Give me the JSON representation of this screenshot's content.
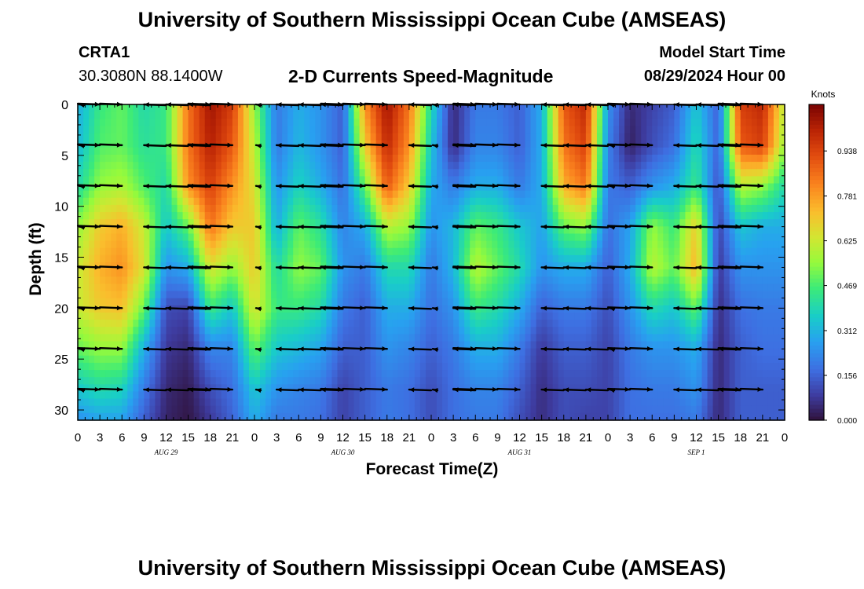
{
  "header": {
    "title": "University of Southern Mississippi Ocean Cube (AMSEAS)",
    "station": "CRTA1",
    "coords": "30.3080N  88.1400W",
    "product": "2-D Currents Speed-Magnitude",
    "model_start_label": "Model Start Time",
    "model_start_value": "08/29/2024 Hour 00"
  },
  "footer": {
    "title": "University of Southern Mississippi Ocean Cube (AMSEAS)"
  },
  "chart_data": {
    "type": "heatmap",
    "title": "2-D Currents Speed-Magnitude",
    "xlabel": "Forecast Time(Z)",
    "ylabel": "Depth (ft)",
    "xlim": [
      0,
      96
    ],
    "ylim": [
      0,
      31
    ],
    "y_inverted": true,
    "x_tick_labels": [
      "0",
      "3",
      "6",
      "9",
      "12",
      "15",
      "18",
      "21",
      "0",
      "3",
      "6",
      "9",
      "12",
      "15",
      "18",
      "21",
      "0",
      "3",
      "6",
      "9",
      "12",
      "15",
      "18",
      "21",
      "0",
      "3",
      "6",
      "9",
      "12",
      "15",
      "18",
      "21",
      "0"
    ],
    "date_labels": [
      {
        "hour": 12,
        "label": "AUG 29"
      },
      {
        "hour": 36,
        "label": "AUG 30"
      },
      {
        "hour": 60,
        "label": "AUG 31"
      },
      {
        "hour": 84,
        "label": "SEP 1"
      }
    ],
    "y_ticks": [
      0,
      5,
      10,
      15,
      20,
      25,
      30
    ],
    "y_tick_labels": [
      "0",
      "5",
      "10",
      "15",
      "20",
      "25",
      "30"
    ],
    "colorbar": {
      "unit": "Knots",
      "min": 0,
      "max": 1.1,
      "tick_values": [
        0.0,
        0.156,
        0.312,
        0.469,
        0.625,
        0.781,
        0.938
      ],
      "tick_labels": [
        "0.000",
        "0.156",
        "0.312",
        "0.469",
        "0.625",
        "0.781",
        "0.938"
      ]
    },
    "speed_profiles": [
      {
        "hour": 0,
        "speeds": [
          0.3,
          0.32,
          0.4,
          0.55,
          0.62,
          0.62,
          0.5,
          0.35,
          0.25
        ]
      },
      {
        "hour": 3,
        "speeds": [
          0.45,
          0.48,
          0.55,
          0.7,
          0.75,
          0.7,
          0.55,
          0.4,
          0.28
        ]
      },
      {
        "hour": 6,
        "speeds": [
          0.5,
          0.5,
          0.58,
          0.75,
          0.8,
          0.72,
          0.55,
          0.38,
          0.28
        ]
      },
      {
        "hour": 9,
        "speeds": [
          0.4,
          0.42,
          0.48,
          0.62,
          0.65,
          0.5,
          0.3,
          0.2,
          0.15
        ]
      },
      {
        "hour": 12,
        "speeds": [
          0.45,
          0.45,
          0.4,
          0.35,
          0.25,
          0.12,
          0.08,
          0.05,
          0.04
        ]
      },
      {
        "hour": 15,
        "speeds": [
          0.85,
          0.85,
          0.8,
          0.5,
          0.3,
          0.1,
          0.05,
          0.02,
          0.01
        ]
      },
      {
        "hour": 18,
        "speeds": [
          1.05,
          1.02,
          0.95,
          0.85,
          0.65,
          0.45,
          0.22,
          0.12,
          0.08
        ]
      },
      {
        "hour": 21,
        "speeds": [
          0.95,
          0.9,
          0.8,
          0.7,
          0.55,
          0.35,
          0.22,
          0.18,
          0.16
        ]
      },
      {
        "hour": 24,
        "speeds": [
          0.55,
          0.6,
          0.65,
          0.7,
          0.7,
          0.65,
          0.5,
          0.35,
          0.3
        ]
      },
      {
        "hour": 27,
        "speeds": [
          0.2,
          0.2,
          0.25,
          0.3,
          0.4,
          0.45,
          0.35,
          0.25,
          0.2
        ]
      },
      {
        "hour": 30,
        "speeds": [
          0.3,
          0.32,
          0.38,
          0.5,
          0.55,
          0.45,
          0.32,
          0.22,
          0.2
        ]
      },
      {
        "hour": 33,
        "speeds": [
          0.25,
          0.25,
          0.3,
          0.42,
          0.5,
          0.4,
          0.28,
          0.2,
          0.18
        ]
      },
      {
        "hour": 36,
        "speeds": [
          0.15,
          0.15,
          0.18,
          0.22,
          0.25,
          0.2,
          0.15,
          0.1,
          0.1
        ]
      },
      {
        "hour": 39,
        "speeds": [
          0.8,
          0.7,
          0.5,
          0.3,
          0.2,
          0.15,
          0.15,
          0.15,
          0.15
        ]
      },
      {
        "hour": 42,
        "speeds": [
          1.05,
          1.0,
          0.9,
          0.6,
          0.4,
          0.3,
          0.25,
          0.2,
          0.2
        ]
      },
      {
        "hour": 45,
        "speeds": [
          0.85,
          0.8,
          0.7,
          0.55,
          0.4,
          0.3,
          0.22,
          0.18,
          0.18
        ]
      },
      {
        "hour": 48,
        "speeds": [
          0.4,
          0.35,
          0.3,
          0.25,
          0.2,
          0.18,
          0.15,
          0.12,
          0.12
        ]
      },
      {
        "hour": 51,
        "speeds": [
          0.05,
          0.05,
          0.2,
          0.32,
          0.32,
          0.25,
          0.2,
          0.18,
          0.18
        ]
      },
      {
        "hour": 54,
        "speeds": [
          0.2,
          0.22,
          0.3,
          0.5,
          0.6,
          0.45,
          0.3,
          0.22,
          0.2
        ]
      },
      {
        "hour": 57,
        "speeds": [
          0.2,
          0.22,
          0.3,
          0.45,
          0.5,
          0.4,
          0.3,
          0.22,
          0.2
        ]
      },
      {
        "hour": 60,
        "speeds": [
          0.15,
          0.15,
          0.2,
          0.35,
          0.4,
          0.3,
          0.2,
          0.15,
          0.12
        ]
      },
      {
        "hour": 63,
        "speeds": [
          0.3,
          0.3,
          0.3,
          0.28,
          0.25,
          0.15,
          0.08,
          0.06,
          0.06
        ]
      },
      {
        "hour": 66,
        "speeds": [
          0.9,
          0.85,
          0.75,
          0.5,
          0.3,
          0.2,
          0.15,
          0.12,
          0.12
        ]
      },
      {
        "hour": 69,
        "speeds": [
          1.0,
          0.95,
          0.85,
          0.55,
          0.3,
          0.2,
          0.15,
          0.12,
          0.1
        ]
      },
      {
        "hour": 72,
        "speeds": [
          0.25,
          0.22,
          0.2,
          0.18,
          0.15,
          0.12,
          0.1,
          0.1,
          0.1
        ]
      },
      {
        "hour": 75,
        "speeds": [
          0.05,
          0.03,
          0.15,
          0.28,
          0.3,
          0.25,
          0.2,
          0.18,
          0.18
        ]
      },
      {
        "hour": 78,
        "speeds": [
          0.1,
          0.12,
          0.25,
          0.55,
          0.6,
          0.4,
          0.25,
          0.2,
          0.18
        ]
      },
      {
        "hour": 81,
        "speeds": [
          0.15,
          0.18,
          0.3,
          0.45,
          0.5,
          0.35,
          0.25,
          0.2,
          0.18
        ]
      },
      {
        "hour": 84,
        "speeds": [
          0.35,
          0.4,
          0.45,
          0.7,
          0.75,
          0.5,
          0.3,
          0.25,
          0.2
        ]
      },
      {
        "hour": 87,
        "speeds": [
          0.15,
          0.15,
          0.12,
          0.1,
          0.08,
          0.06,
          0.05,
          0.05,
          0.05
        ]
      },
      {
        "hour": 90,
        "speeds": [
          0.95,
          0.9,
          0.6,
          0.35,
          0.25,
          0.18,
          0.15,
          0.15,
          0.15
        ]
      },
      {
        "hour": 93,
        "speeds": [
          1.0,
          0.95,
          0.55,
          0.3,
          0.25,
          0.2,
          0.18,
          0.15,
          0.15
        ]
      },
      {
        "hour": 96,
        "speeds": [
          0.6,
          0.55,
          0.4,
          0.3,
          0.25,
          0.2,
          0.18,
          0.15,
          0.15
        ]
      }
    ],
    "profile_depths": [
      0,
      4,
      8,
      12,
      16,
      20,
      24,
      28,
      31
    ],
    "vector_depths": [
      0,
      4,
      8,
      12,
      16,
      20,
      24,
      28
    ],
    "vector_hours": [
      0,
      3,
      6,
      9,
      12,
      15,
      18,
      21,
      24,
      27,
      30,
      33,
      36,
      39,
      42,
      45,
      48,
      51,
      54,
      57,
      60,
      63,
      66,
      69,
      72,
      75,
      78,
      81,
      84,
      87,
      90,
      93,
      96
    ]
  }
}
